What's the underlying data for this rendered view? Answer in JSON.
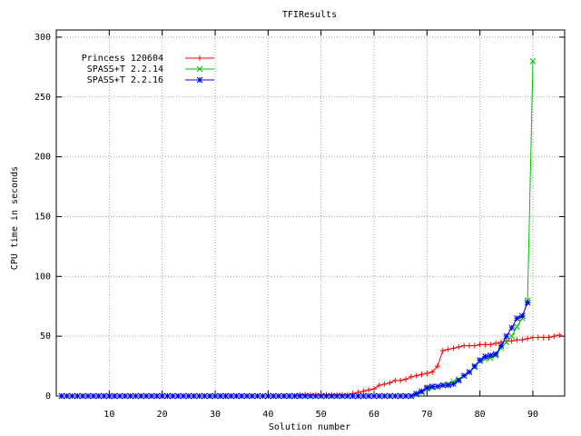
{
  "chart_data": {
    "type": "line",
    "title": "TFIResults",
    "x_label": "Solution number",
    "y_label": "CPU time in seconds",
    "x": [
      1,
      2,
      3,
      4,
      5,
      6,
      7,
      8,
      9,
      10,
      11,
      12,
      13,
      14,
      15,
      16,
      17,
      18,
      19,
      20,
      21,
      22,
      23,
      24,
      25,
      26,
      27,
      28,
      29,
      30,
      31,
      32,
      33,
      34,
      35,
      36,
      37,
      38,
      39,
      40,
      41,
      42,
      43,
      44,
      45,
      46,
      47,
      48,
      49,
      50,
      51,
      52,
      53,
      54,
      55,
      56,
      57,
      58,
      59,
      60,
      61,
      62,
      63,
      64,
      65,
      66,
      67,
      68,
      69,
      70,
      71,
      72,
      73,
      74,
      75,
      76,
      77,
      78,
      79,
      80,
      81,
      82,
      83,
      84,
      85,
      86,
      87,
      88,
      89,
      90,
      91,
      92,
      93,
      94,
      95
    ],
    "series": [
      {
        "name": "Princess 120604",
        "color": "#ff0000",
        "marker": "plus",
        "values": [
          0,
          0,
          0,
          0,
          0,
          0,
          0,
          0,
          0,
          0,
          0,
          0,
          0,
          0,
          0,
          0,
          0,
          0,
          0,
          0,
          0,
          0,
          0,
          0,
          0,
          0,
          0,
          0,
          0,
          0,
          0,
          0,
          0,
          0,
          0,
          0,
          0,
          0,
          0,
          0,
          0,
          0,
          0,
          0,
          0,
          1,
          1,
          1,
          1,
          1,
          1,
          1,
          1,
          1,
          1,
          2,
          3,
          4,
          5,
          6,
          9,
          10,
          11,
          13,
          13,
          14,
          16,
          17,
          18,
          19,
          20,
          25,
          38,
          39,
          40,
          41,
          42,
          42,
          42,
          43,
          43,
          43,
          44,
          45,
          46,
          46,
          47,
          47,
          48,
          49,
          49,
          49,
          49,
          50,
          51
        ]
      },
      {
        "name": "SPASS+T 2.2.14",
        "color": "#00c000",
        "marker": "cross",
        "values": [
          0,
          0,
          0,
          0,
          0,
          0,
          0,
          0,
          0,
          0,
          0,
          0,
          0,
          0,
          0,
          0,
          0,
          0,
          0,
          0,
          0,
          0,
          0,
          0,
          0,
          0,
          0,
          0,
          0,
          0,
          0,
          0,
          0,
          0,
          0,
          0,
          0,
          0,
          0,
          0,
          0,
          0,
          0,
          0,
          0,
          0,
          0,
          0,
          0,
          0,
          0,
          0,
          0,
          0,
          0,
          0,
          0,
          0,
          0,
          0,
          0,
          0,
          0,
          0,
          0,
          0,
          0,
          1,
          3,
          6,
          7,
          8,
          9,
          10,
          12,
          14,
          17,
          20,
          24,
          29,
          31,
          32,
          34,
          40,
          45,
          50,
          58,
          65,
          80,
          280,
          null,
          null,
          null,
          null,
          null
        ]
      },
      {
        "name": "SPASS+T 2.2.16",
        "color": "#0000ff",
        "marker": "star",
        "values": [
          0,
          0,
          0,
          0,
          0,
          0,
          0,
          0,
          0,
          0,
          0,
          0,
          0,
          0,
          0,
          0,
          0,
          0,
          0,
          0,
          0,
          0,
          0,
          0,
          0,
          0,
          0,
          0,
          0,
          0,
          0,
          0,
          0,
          0,
          0,
          0,
          0,
          0,
          0,
          0,
          0,
          0,
          0,
          0,
          0,
          0,
          0,
          0,
          0,
          0,
          0,
          0,
          0,
          0,
          0,
          0,
          0,
          0,
          0,
          0,
          0,
          0,
          0,
          0,
          0,
          0,
          0,
          2,
          4,
          7,
          8,
          8,
          9,
          9,
          10,
          13,
          17,
          20,
          25,
          30,
          33,
          34,
          35,
          42,
          50,
          57,
          65,
          67,
          78,
          null,
          null,
          null,
          null,
          null,
          null
        ]
      }
    ],
    "xlim": [
      0,
      96
    ],
    "ylim": [
      0,
      306
    ],
    "xticks": [
      10,
      20,
      30,
      40,
      50,
      60,
      70,
      80,
      90
    ],
    "yticks": [
      0,
      50,
      100,
      150,
      200,
      250,
      300
    ],
    "grid": true,
    "legend": "top-left"
  }
}
